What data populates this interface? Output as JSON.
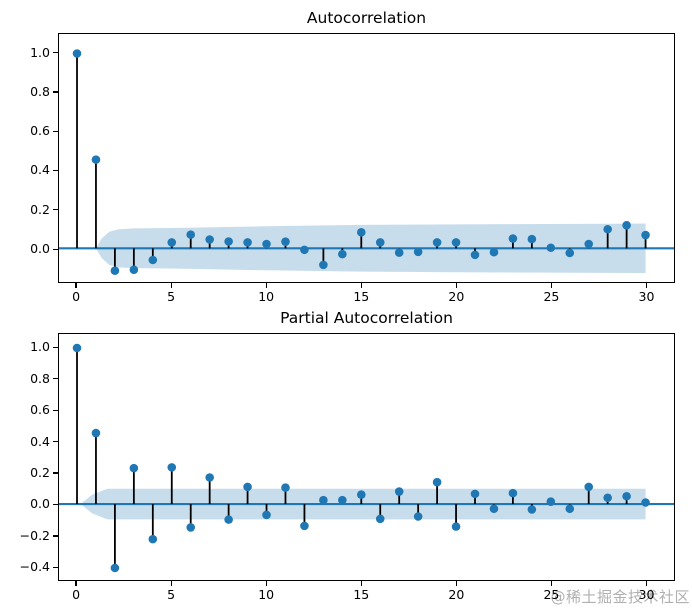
{
  "watermark": "@稀土掘金技术社区",
  "colors": {
    "accent_blue": "#1f77b4",
    "confidence_band_fill": "rgba(31,119,180,0.25)",
    "stem_line": "#000000",
    "axis_text": "#000000",
    "watermark_gray": "rgba(150,150,150,0.75)"
  },
  "chart_data": [
    {
      "type": "stem",
      "title": "Autocorrelation",
      "xlabel": "",
      "ylabel": "",
      "x": [
        0,
        1,
        2,
        3,
        4,
        5,
        6,
        7,
        8,
        9,
        10,
        11,
        12,
        13,
        14,
        15,
        16,
        17,
        18,
        19,
        20,
        21,
        22,
        23,
        24,
        25,
        26,
        27,
        28,
        29,
        30
      ],
      "values": [
        1.0,
        0.455,
        -0.115,
        -0.11,
        -0.06,
        0.03,
        0.07,
        0.045,
        0.035,
        0.03,
        0.022,
        0.034,
        -0.008,
        -0.085,
        -0.03,
        0.082,
        0.03,
        -0.022,
        -0.018,
        0.03,
        0.03,
        -0.034,
        -0.02,
        0.05,
        0.047,
        0.003,
        -0.024,
        0.022,
        0.098,
        0.118,
        0.068
      ],
      "xlim": [
        -0.95,
        31.5
      ],
      "ylim": [
        -0.173,
        1.1
      ],
      "xticks": [
        0,
        5,
        10,
        15,
        20,
        25,
        30
      ],
      "xtick_labels": [
        "0",
        "5",
        "10",
        "15",
        "20",
        "25",
        "30"
      ],
      "yticks": [
        1.0,
        0.8,
        0.6,
        0.4,
        0.2,
        0.0
      ],
      "ytick_labels": [
        "1.0",
        "0.8",
        "0.6",
        "0.4",
        "0.2",
        "0.0"
      ],
      "grid": false,
      "zero_line": 0,
      "conf_band": {
        "x": [
          1.0,
          1.3,
          1.7,
          2.2,
          3.0,
          5.0,
          10.0,
          15.0,
          20.0,
          25.0,
          30.0
        ],
        "upper": [
          0.0,
          0.05,
          0.085,
          0.098,
          0.102,
          0.104,
          0.113,
          0.12,
          0.123,
          0.125,
          0.127
        ],
        "lower": [
          0.0,
          -0.05,
          -0.085,
          -0.098,
          -0.102,
          -0.104,
          -0.113,
          -0.12,
          -0.123,
          -0.125,
          -0.127
        ]
      }
    },
    {
      "type": "stem",
      "title": "Partial Autocorrelation",
      "xlabel": "",
      "ylabel": "",
      "x": [
        0,
        1,
        2,
        3,
        4,
        5,
        6,
        7,
        8,
        9,
        10,
        11,
        12,
        13,
        14,
        15,
        16,
        17,
        18,
        19,
        20,
        21,
        22,
        23,
        24,
        25,
        26,
        27,
        28,
        29,
        30
      ],
      "values": [
        1.0,
        0.455,
        -0.41,
        0.23,
        -0.225,
        0.235,
        -0.15,
        0.17,
        -0.1,
        0.11,
        -0.07,
        0.105,
        -0.14,
        0.025,
        0.025,
        0.06,
        -0.095,
        0.08,
        -0.08,
        0.14,
        -0.145,
        0.065,
        -0.03,
        0.07,
        -0.035,
        0.015,
        -0.03,
        0.11,
        0.04,
        0.05,
        0.01
      ],
      "xlim": [
        -0.95,
        31.5
      ],
      "ylim": [
        -0.487,
        1.09
      ],
      "xticks": [
        0,
        5,
        10,
        15,
        20,
        25,
        30
      ],
      "xtick_labels": [
        "0",
        "5",
        "10",
        "15",
        "20",
        "25",
        "30"
      ],
      "yticks": [
        1.0,
        0.8,
        0.6,
        0.4,
        0.2,
        0.0,
        -0.2,
        -0.4
      ],
      "ytick_labels": [
        "1.0",
        "0.8",
        "0.6",
        "0.4",
        "0.2",
        "0.0",
        "−0.2",
        "−0.4"
      ],
      "grid": false,
      "zero_line": 0,
      "conf_band": {
        "x": [
          0.2,
          0.8,
          1.6,
          30.0
        ],
        "upper": [
          0.0,
          0.06,
          0.098,
          0.098
        ],
        "lower": [
          0.0,
          -0.06,
          -0.098,
          -0.098
        ]
      }
    }
  ]
}
